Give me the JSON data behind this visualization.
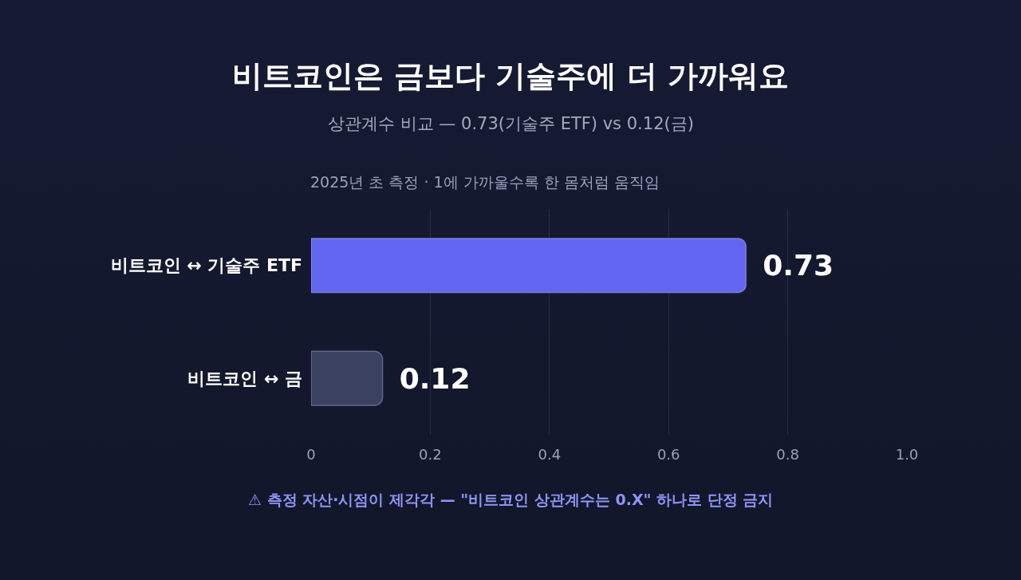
{
  "chart_data": {
    "type": "bar",
    "orientation": "horizontal",
    "title": "비트코인은 금보다 기술주에 더 가까워요",
    "subtitle": "상관계수 비교 — 0.73(기술주 ETF) vs 0.12(금)",
    "categories": [
      "비트코인 ↔ 기술주 ETF",
      "비트코인 ↔ 금"
    ],
    "values": [
      0.73,
      0.12
    ],
    "colors": [
      "#6366f1",
      "#3b4160"
    ],
    "xlim": [
      0,
      1
    ],
    "xticks": [
      0,
      0.2,
      0.4,
      0.6,
      0.8,
      {
        "value": 1,
        "label": "1.0"
      }
    ],
    "grid": "x",
    "data_labels": true,
    "annotations": [
      "2025년 초 측정 · 1에 가까울수록 한 몸처럼 움직임",
      "⚠ 측정 자산·시점이 제각각 — \"비트코인 상관계수는 0.X\" 하나로 단정 금지"
    ]
  }
}
